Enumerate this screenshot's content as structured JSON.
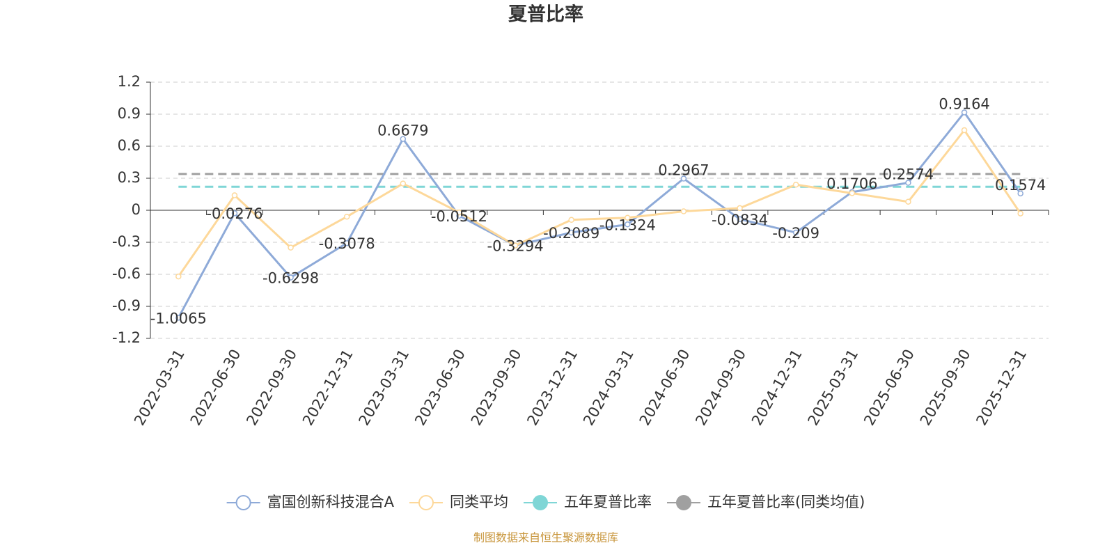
{
  "chart_data": {
    "type": "line",
    "title": "夏普比率",
    "categories": [
      "2022-03-31",
      "2022-06-30",
      "2022-09-30",
      "2022-12-31",
      "2023-03-31",
      "2023-06-30",
      "2023-09-30",
      "2023-12-31",
      "2024-03-31",
      "2024-06-30",
      "2024-09-30",
      "2024-12-31",
      "2025-03-31",
      "2025-06-30",
      "2025-09-30",
      "2025-12-31"
    ],
    "series": [
      {
        "name": "富国创新科技混合A",
        "color": "#8eaad8",
        "show_labels": true,
        "values": [
          -1.0065,
          -0.0276,
          -0.6298,
          -0.3078,
          0.6679,
          -0.0512,
          -0.3294,
          -0.2089,
          -0.1324,
          0.2967,
          -0.0834,
          -0.209,
          0.1706,
          0.2574,
          0.9164,
          0.1574
        ]
      },
      {
        "name": "同类平均",
        "color": "#fdd89a",
        "values": [
          -0.62,
          0.14,
          -0.35,
          -0.06,
          0.25,
          -0.02,
          -0.33,
          -0.09,
          -0.07,
          -0.01,
          0.02,
          0.24,
          0.16,
          0.08,
          0.75,
          -0.03
        ]
      },
      {
        "name": "五年夏普比率",
        "color": "#7fd6d6",
        "line_style": "dashed",
        "values": [
          0.22,
          0.22,
          0.22,
          0.22,
          0.22,
          0.22,
          0.22,
          0.22,
          0.22,
          0.22,
          0.22,
          0.22,
          0.22,
          0.22,
          0.22,
          0.22
        ]
      },
      {
        "name": "五年夏普比率(同类均值)",
        "color": "#a0a0a0",
        "line_style": "dashed",
        "values": [
          0.34,
          0.34,
          0.34,
          0.34,
          0.34,
          0.34,
          0.34,
          0.34,
          0.34,
          0.34,
          0.34,
          0.34,
          0.34,
          0.34,
          0.34,
          0.34
        ]
      }
    ],
    "ylim": [
      -1.2,
      1.2
    ],
    "yticks": [
      -1.2,
      -0.9,
      -0.6,
      -0.3,
      0,
      0.3,
      0.6,
      0.9,
      1.2
    ],
    "grid": true,
    "legend": "bottom",
    "footer": "制图数据来自恒生聚源数据库"
  }
}
